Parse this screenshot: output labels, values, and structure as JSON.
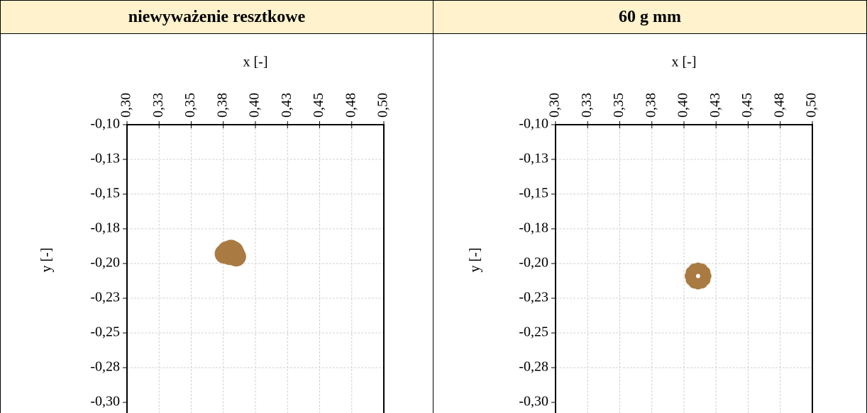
{
  "table": {
    "header": [
      "niewyważenie resztkowe",
      "60 g mm"
    ]
  },
  "chart_data": [
    {
      "type": "scatter",
      "xlabel": "x [-]",
      "ylabel": "y [-]",
      "xaxis_position": "top",
      "grid": true,
      "xlim": [
        0.3,
        0.5
      ],
      "ylim": [
        -0.3,
        -0.1
      ],
      "xticks": [
        {
          "value": 0.3,
          "label": "0,30"
        },
        {
          "value": 0.325,
          "label": "0,33"
        },
        {
          "value": 0.35,
          "label": "0,35"
        },
        {
          "value": 0.375,
          "label": "0,38"
        },
        {
          "value": 0.4,
          "label": "0,40"
        },
        {
          "value": 0.425,
          "label": "0,43"
        },
        {
          "value": 0.45,
          "label": "0,45"
        },
        {
          "value": 0.475,
          "label": "0,48"
        },
        {
          "value": 0.5,
          "label": "0,50"
        }
      ],
      "yticks": [
        {
          "value": -0.1,
          "label": "-0,10"
        },
        {
          "value": -0.125,
          "label": "-0,13"
        },
        {
          "value": -0.15,
          "label": "-0,15"
        },
        {
          "value": -0.175,
          "label": "-0,18"
        },
        {
          "value": -0.2,
          "label": "-0,20"
        },
        {
          "value": -0.225,
          "label": "-0,23"
        },
        {
          "value": -0.25,
          "label": "-0,25"
        },
        {
          "value": -0.275,
          "label": "-0,28"
        },
        {
          "value": -0.3,
          "label": "-0,30"
        }
      ],
      "series": [
        {
          "color": "#a97a42",
          "x": [
            0.378,
            0.381,
            0.384,
            0.385,
            0.38,
            0.376,
            0.383
          ],
          "values": [
            -0.191,
            -0.19,
            -0.193,
            -0.195,
            -0.194,
            -0.193,
            -0.191
          ]
        }
      ]
    },
    {
      "type": "scatter",
      "xlabel": "x [-]",
      "ylabel": "y [-]",
      "xaxis_position": "top",
      "grid": true,
      "xlim": [
        0.3,
        0.5
      ],
      "ylim": [
        -0.3,
        -0.1
      ],
      "xticks": [
        {
          "value": 0.3,
          "label": "0,30"
        },
        {
          "value": 0.325,
          "label": "0,33"
        },
        {
          "value": 0.35,
          "label": "0,35"
        },
        {
          "value": 0.375,
          "label": "0,38"
        },
        {
          "value": 0.4,
          "label": "0,40"
        },
        {
          "value": 0.425,
          "label": "0,43"
        },
        {
          "value": 0.45,
          "label": "0,45"
        },
        {
          "value": 0.475,
          "label": "0,48"
        },
        {
          "value": 0.5,
          "label": "0,50"
        }
      ],
      "yticks": [
        {
          "value": -0.1,
          "label": "-0,10"
        },
        {
          "value": -0.125,
          "label": "-0,13"
        },
        {
          "value": -0.15,
          "label": "-0,15"
        },
        {
          "value": -0.175,
          "label": "-0,18"
        },
        {
          "value": -0.2,
          "label": "-0,20"
        },
        {
          "value": -0.225,
          "label": "-0,23"
        },
        {
          "value": -0.25,
          "label": "-0,25"
        },
        {
          "value": -0.275,
          "label": "-0,28"
        },
        {
          "value": -0.3,
          "label": "-0,30"
        }
      ],
      "series": [
        {
          "color": "#a97a42",
          "x": [
            0.417,
            0.4162,
            0.414,
            0.411,
            0.408,
            0.4058,
            0.405,
            0.4058,
            0.408,
            0.411,
            0.414,
            0.4162
          ],
          "values": [
            -0.209,
            -0.2062,
            -0.2041,
            -0.2034,
            -0.2041,
            -0.2062,
            -0.209,
            -0.2118,
            -0.2139,
            -0.2146,
            -0.2139,
            -0.2118
          ]
        }
      ]
    }
  ]
}
